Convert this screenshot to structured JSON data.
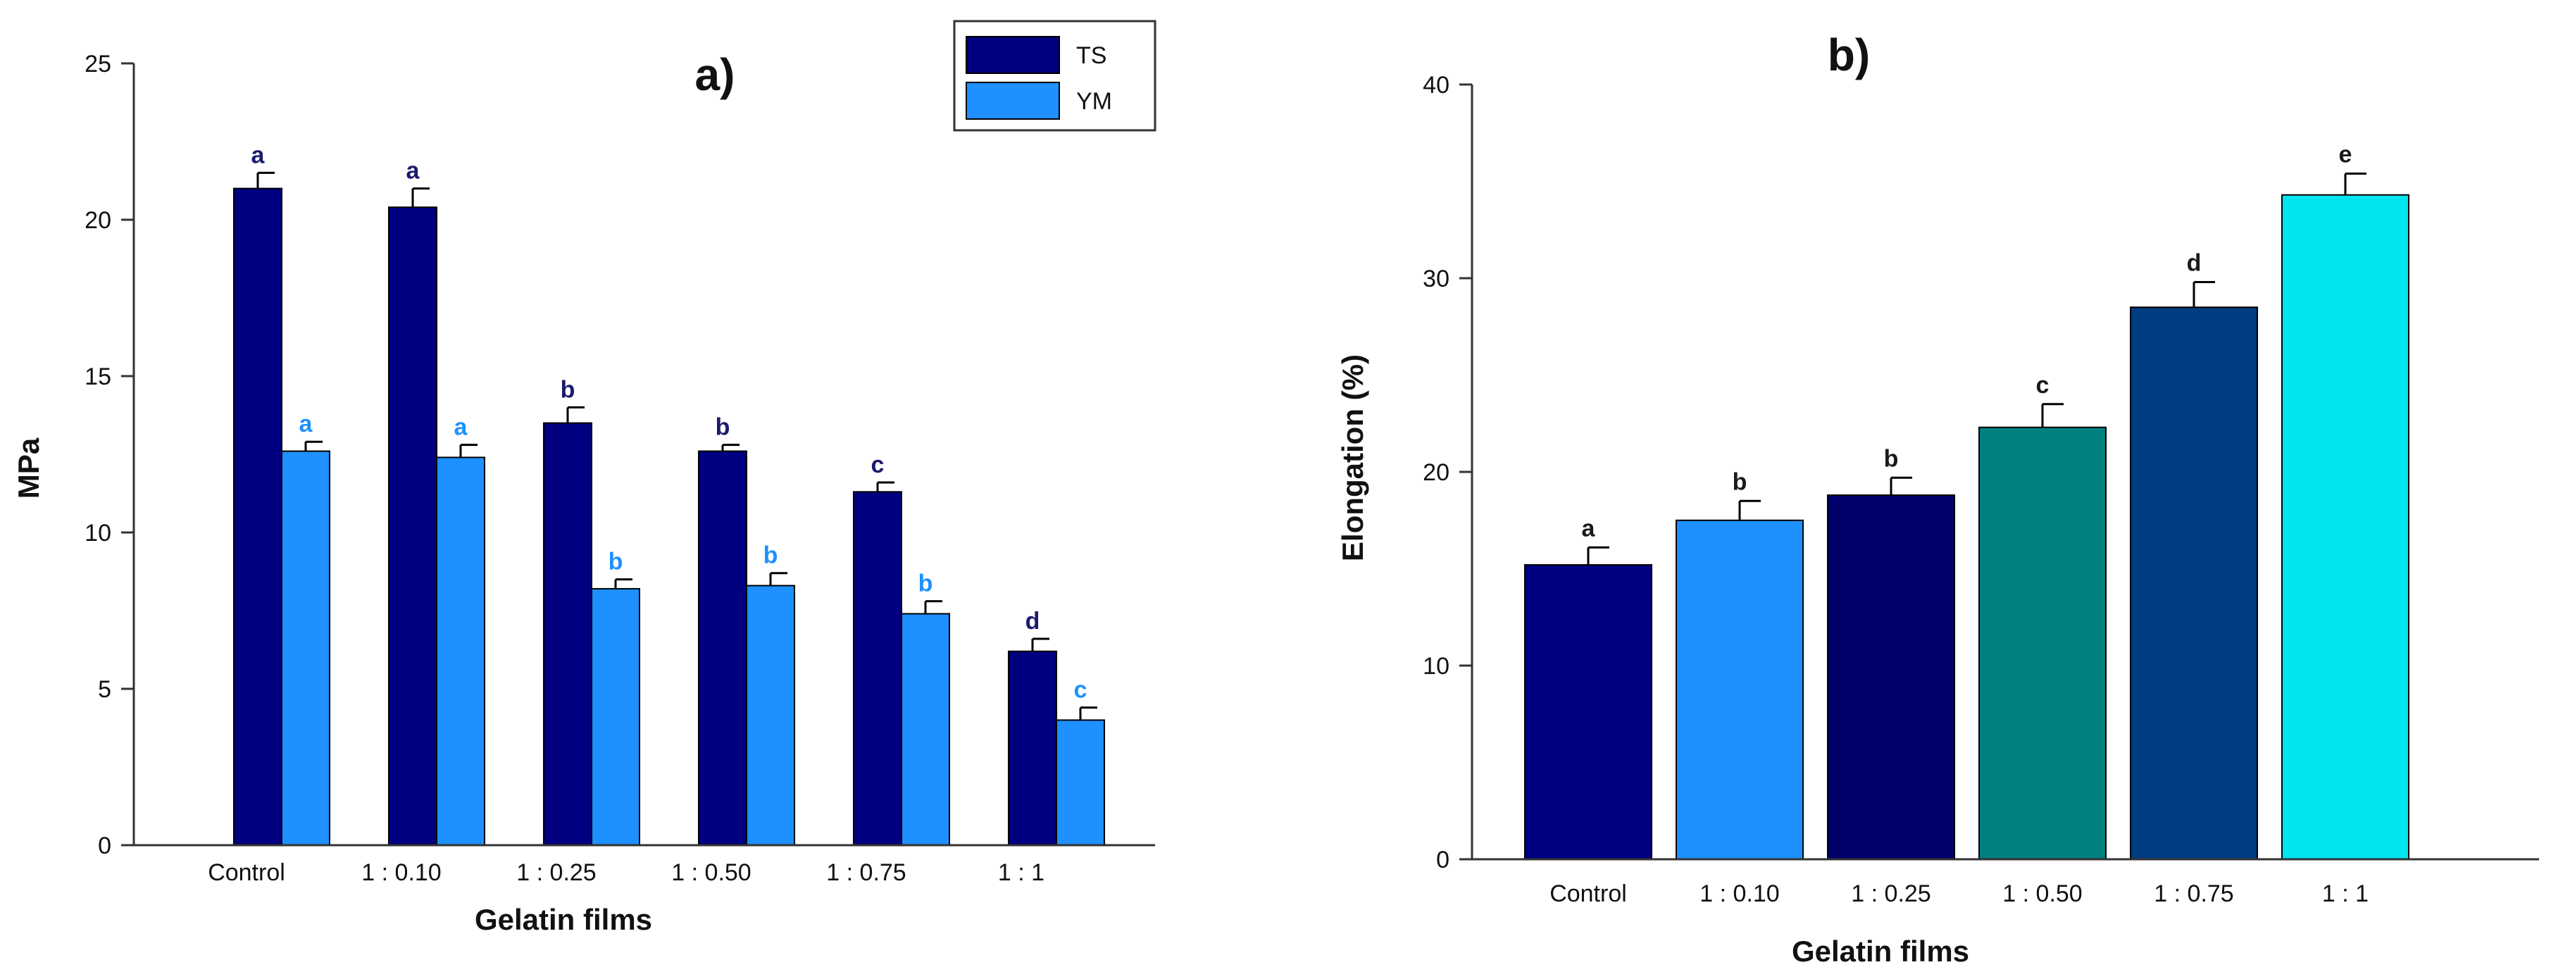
{
  "chart_data": [
    {
      "type": "bar",
      "panel_label": "a)",
      "xlabel": "Gelatin films",
      "ylabel": "MPa",
      "ylim": [
        0,
        25
      ],
      "yticks": [
        0,
        5,
        10,
        15,
        20,
        25
      ],
      "legend_position": "top-right",
      "categories": [
        "Control",
        "1 : 0.10",
        "1 : 0.25",
        "1 : 0.50",
        "1 : 0.75",
        "1 : 1"
      ],
      "series": [
        {
          "name": "TS",
          "color": "#000080",
          "values": [
            21.0,
            20.4,
            13.5,
            12.6,
            11.3,
            6.2
          ],
          "errors": [
            0.5,
            0.6,
            0.5,
            0.2,
            0.3,
            0.4
          ],
          "letters": [
            "a",
            "a",
            "b",
            "b",
            "c",
            "d"
          ],
          "letter_color": "#1a1a6e"
        },
        {
          "name": "YM",
          "color": "#1e90ff",
          "values": [
            12.6,
            12.4,
            8.2,
            8.3,
            7.4,
            4.0
          ],
          "errors": [
            0.3,
            0.4,
            0.3,
            0.4,
            0.4,
            0.4
          ],
          "letters": [
            "a",
            "a",
            "b",
            "b",
            "b",
            "c"
          ],
          "letter_color": "#1e90ff"
        }
      ]
    },
    {
      "type": "bar",
      "panel_label": "b)",
      "xlabel": "Gelatin films",
      "ylabel": "Elongation (%)",
      "ylim": [
        0,
        40
      ],
      "yticks": [
        0,
        10,
        20,
        30,
        40
      ],
      "categories": [
        "Control",
        "1 : 0.10",
        "1 : 0.25",
        "1 : 0.50",
        "1 : 0.75",
        "1 : 1"
      ],
      "values": [
        15.2,
        17.5,
        18.8,
        22.3,
        28.5,
        34.3
      ],
      "errors": [
        0.9,
        1.0,
        0.9,
        1.2,
        1.3,
        1.1
      ],
      "letters": [
        "a",
        "b",
        "b",
        "c",
        "d",
        "e"
      ],
      "colors": [
        "#000080",
        "#1e90ff",
        "#00006b",
        "#008080",
        "#003c80",
        "#00e5ee"
      ],
      "letter_color": "#1a1a1a"
    }
  ]
}
